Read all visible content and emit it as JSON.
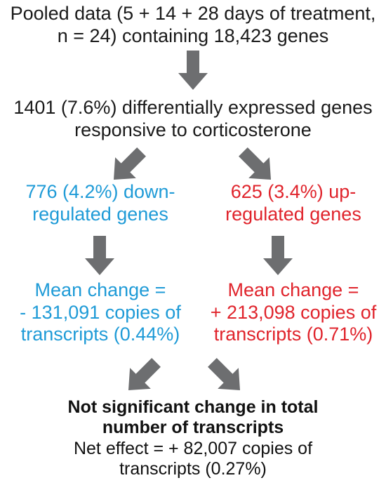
{
  "colors": {
    "down": "#1f9bd7",
    "up": "#e0242c",
    "text": "#1a1a1a",
    "arrow": "#6d6e70"
  },
  "pooled": {
    "line1": "Pooled data (5 + 14 + 28 days of treatment,",
    "line2": "n = 24) containing 18,423 genes"
  },
  "differential": {
    "line1": "1401 (7.6%) differentially expressed genes",
    "line2": "responsive to corticosterone"
  },
  "down": {
    "line1": "776 (4.2%) down-",
    "line2": "regulated genes",
    "change_line1": "Mean change =",
    "change_line2": "- 131,091 copies of",
    "change_line3": "transcripts (0.44%)"
  },
  "up": {
    "line1": "625 (3.4%) up-",
    "line2": "regulated genes",
    "change_line1": "Mean change =",
    "change_line2": "+ 213,098 copies of",
    "change_line3": "transcripts (0.71%)"
  },
  "result": {
    "heading_line1": "Not significant change in total",
    "heading_line2": "number of transcripts",
    "net_line1": "Net effect = + 82,007 copies of",
    "net_line2": "transcripts (0.27%)"
  }
}
